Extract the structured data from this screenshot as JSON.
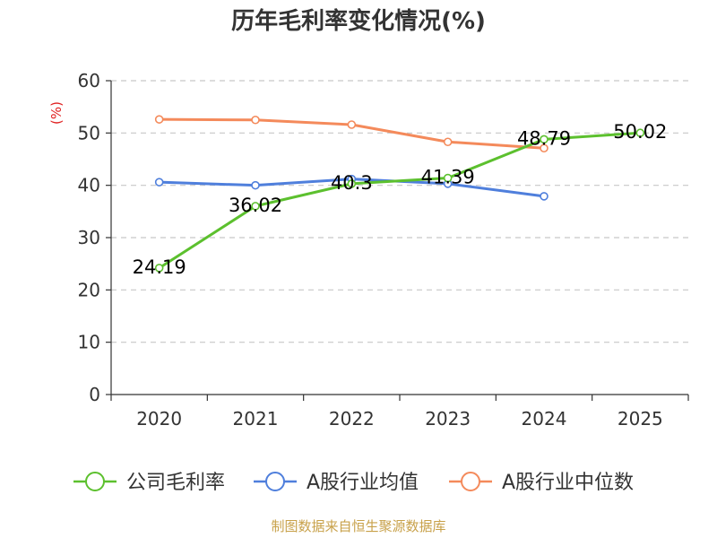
{
  "chart_data": {
    "type": "line",
    "title": "历年毛利率变化情况(%)",
    "ylabel": "(%)",
    "xlabel": "",
    "categories": [
      "2020",
      "2021",
      "2022",
      "2023",
      "2024",
      "2025"
    ],
    "ylim": [
      0,
      60
    ],
    "yticks": [
      0,
      10,
      20,
      30,
      40,
      50,
      60
    ],
    "grid": true,
    "legend_position": "bottom",
    "series": [
      {
        "name": "公司毛利率",
        "color": "#5cc02e",
        "values": [
          24.19,
          36.02,
          40.3,
          41.39,
          48.79,
          50.02
        ],
        "labels": [
          "24.19",
          "36.02",
          "40.3",
          "41.39",
          "48.79",
          "50.02"
        ]
      },
      {
        "name": "A股行业均值",
        "color": "#4f7fdc",
        "values": [
          40.6,
          40.0,
          41.2,
          40.3,
          37.9,
          null
        ]
      },
      {
        "name": "A股行业中位数",
        "color": "#f48a5b",
        "values": [
          52.6,
          52.5,
          51.6,
          48.3,
          47.1,
          null
        ]
      }
    ]
  },
  "source": "制图数据来自恒生聚源数据库"
}
